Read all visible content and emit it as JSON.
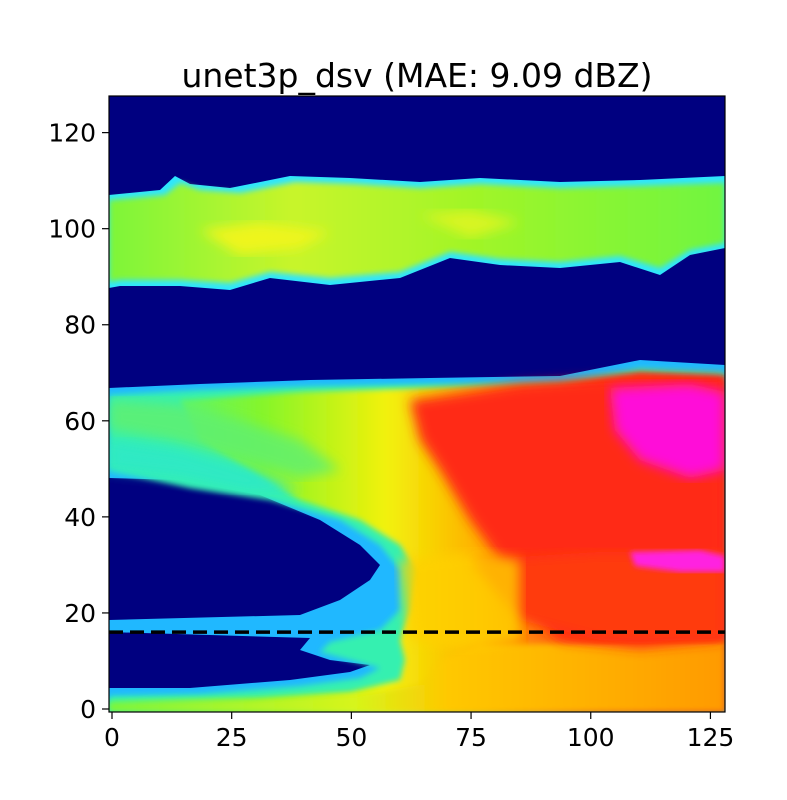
{
  "chart_data": {
    "type": "heatmap",
    "title": "unet3p_dsv (MAE: 9.09 dBZ)",
    "xlabel": "",
    "ylabel": "",
    "xlim": [
      0,
      127
    ],
    "ylim": [
      0,
      127
    ],
    "x_ticks": [
      0,
      25,
      50,
      75,
      100,
      125
    ],
    "y_ticks": [
      0,
      20,
      40,
      60,
      80,
      100,
      120
    ],
    "x_tick_labels": [
      "0",
      "25",
      "50",
      "75",
      "100",
      "125"
    ],
    "y_tick_labels": [
      "0",
      "20",
      "40",
      "60",
      "80",
      "100",
      "120"
    ],
    "colormap": "gist_ncar-like",
    "background_color": "#000080",
    "grid": false,
    "colorbar": false,
    "regions": [
      {
        "label": "upper band",
        "x": [
          0,
          127
        ],
        "y": [
          88,
          111
        ],
        "level": "green-yellow"
      },
      {
        "label": "main echo mass",
        "x": [
          0,
          127
        ],
        "y": [
          0,
          70
        ],
        "level": "cyan-green to red-magenta"
      }
    ],
    "reference_line": {
      "y": 16,
      "x_range": [
        0,
        127
      ],
      "style": "dashed",
      "color": "#000000"
    }
  }
}
